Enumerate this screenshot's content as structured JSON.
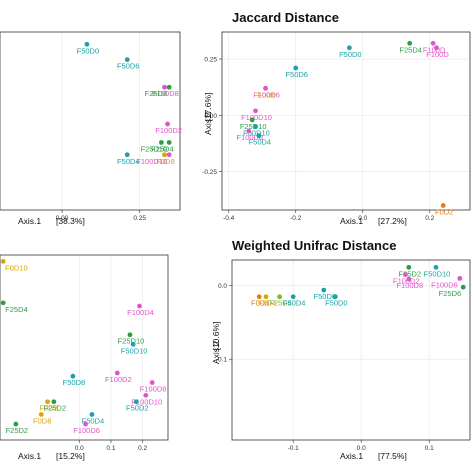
{
  "colors": {
    "F0": "#d6a800",
    "F25": "#2e9e44",
    "F50": "#19a3a8",
    "F100": "#e056c9",
    "F0b": "#e07b1e",
    "F25b": "#7bb82a"
  },
  "chart_data": [
    {
      "type": "scatter",
      "title": "",
      "xlabel": "Axis.1",
      "xpct": "[38.3%]",
      "ylabel": "",
      "ypct": "",
      "xticks": [
        "0.00",
        "0.25"
      ],
      "xtick_values": [
        0.0,
        0.25
      ],
      "yticks": [],
      "ytick_values": [],
      "xlim": [
        -0.2,
        0.38
      ],
      "ylim": [
        -0.3,
        0.28
      ],
      "points": [
        {
          "label": "F50D0",
          "x": 0.08,
          "y": 0.24,
          "group": "F50"
        },
        {
          "label": "F50D6",
          "x": 0.21,
          "y": 0.19,
          "group": "F50"
        },
        {
          "label": "F100D8",
          "x": 0.33,
          "y": 0.1,
          "group": "F100"
        },
        {
          "label": "F25D8",
          "x": 0.345,
          "y": 0.1,
          "group": "F25"
        },
        {
          "label": "F100D2",
          "x": 0.34,
          "y": -0.02,
          "group": "F100"
        },
        {
          "label": "F25D4",
          "x": 0.32,
          "y": -0.08,
          "group": "F25"
        },
        {
          "label": "F50D4",
          "x": 0.21,
          "y": -0.12,
          "group": "F50"
        },
        {
          "label": "F0D8",
          "x": 0.33,
          "y": -0.12,
          "group": "F0"
        },
        {
          "label": "F100D10",
          "x": 0.345,
          "y": -0.12,
          "group": "F100"
        },
        {
          "label": "F25D10",
          "x": 0.345,
          "y": -0.08,
          "group": "F25"
        }
      ]
    },
    {
      "type": "scatter",
      "title": "Jaccard Distance",
      "xlabel": "Axis.1",
      "xpct": "[27.2%]",
      "ylabel": "Axis.2",
      "ypct": "[17.6%]",
      "xticks": [
        "-0.4",
        "-0.2",
        "0.0",
        "0.2"
      ],
      "xtick_values": [
        -0.4,
        -0.2,
        0.0,
        0.2
      ],
      "yticks": [
        "0.25",
        "0.00",
        "-0.25"
      ],
      "ytick_values": [
        0.25,
        0.0,
        -0.25
      ],
      "xlim": [
        -0.42,
        0.32
      ],
      "ylim": [
        -0.42,
        0.37
      ],
      "points": [
        {
          "label": "F25D4",
          "x": 0.14,
          "y": 0.32,
          "group": "F25"
        },
        {
          "label": "F100D",
          "x": 0.21,
          "y": 0.32,
          "group": "F100"
        },
        {
          "label": "F100D",
          "x": 0.22,
          "y": 0.3,
          "group": "F100"
        },
        {
          "label": "F50D0",
          "x": -0.04,
          "y": 0.3,
          "group": "F50"
        },
        {
          "label": "F50D6",
          "x": -0.2,
          "y": 0.21,
          "group": "F50"
        },
        {
          "label": "F0D8",
          "x": -0.29,
          "y": 0.12,
          "group": "F0"
        },
        {
          "label": "F100D6",
          "x": -0.29,
          "y": 0.12,
          "group": "F100"
        },
        {
          "label": "F100D10",
          "x": -0.32,
          "y": 0.02,
          "group": "F100"
        },
        {
          "label": "F25D10",
          "x": -0.33,
          "y": -0.02,
          "group": "F25"
        },
        {
          "label": "F50D10",
          "x": -0.32,
          "y": -0.05,
          "group": "F50"
        },
        {
          "label": "F100D8",
          "x": -0.34,
          "y": -0.07,
          "group": "F100"
        },
        {
          "label": "F50D4",
          "x": -0.31,
          "y": -0.09,
          "group": "F50"
        },
        {
          "label": "F0D2",
          "x": 0.24,
          "y": -0.4,
          "group": "F0b"
        }
      ]
    },
    {
      "type": "scatter",
      "title": "",
      "xlabel": "Axis.1",
      "xpct": "[15.2%]",
      "ylabel": "",
      "ypct": "",
      "xticks": [
        "0.0",
        "0.1",
        "0.2"
      ],
      "xtick_values": [
        0.0,
        0.1,
        0.2
      ],
      "yticks": [],
      "ytick_values": [],
      "xlim": [
        -0.25,
        0.28
      ],
      "ylim": [
        -0.36,
        0.22
      ],
      "points": [
        {
          "label": "F0D10",
          "x": -0.24,
          "y": 0.2,
          "group": "F0"
        },
        {
          "label": "F25D4",
          "x": -0.24,
          "y": 0.07,
          "group": "F25"
        },
        {
          "label": "F100D4",
          "x": 0.19,
          "y": 0.06,
          "group": "F100"
        },
        {
          "label": "F25D10",
          "x": 0.16,
          "y": -0.03,
          "group": "F25"
        },
        {
          "label": "F50D10",
          "x": 0.17,
          "y": -0.06,
          "group": "F50"
        },
        {
          "label": "F50D8",
          "x": -0.02,
          "y": -0.16,
          "group": "F50"
        },
        {
          "label": "F100D2",
          "x": 0.12,
          "y": -0.15,
          "group": "F100"
        },
        {
          "label": "F100D8",
          "x": 0.23,
          "y": -0.18,
          "group": "F100"
        },
        {
          "label": "F100D10",
          "x": 0.21,
          "y": -0.22,
          "group": "F100"
        },
        {
          "label": "F50D2",
          "x": 0.18,
          "y": -0.24,
          "group": "F50"
        },
        {
          "label": "F0D2",
          "x": -0.1,
          "y": -0.24,
          "group": "F0"
        },
        {
          "label": "F25D2",
          "x": -0.08,
          "y": -0.24,
          "group": "F25"
        },
        {
          "label": "F50D4",
          "x": 0.04,
          "y": -0.28,
          "group": "F50"
        },
        {
          "label": "F0D8",
          "x": -0.12,
          "y": -0.28,
          "group": "F0"
        },
        {
          "label": "F25D2",
          "x": -0.2,
          "y": -0.31,
          "group": "F25"
        },
        {
          "label": "F100D6",
          "x": 0.02,
          "y": -0.31,
          "group": "F100"
        }
      ]
    },
    {
      "type": "scatter",
      "title": "Weighted Unifrac Distance",
      "xlabel": "Axis.1",
      "xpct": "[77.5%]",
      "ylabel": "Axis.2",
      "ypct": "[10.6%]",
      "xticks": [
        "-0.1",
        "0.0",
        "0.1"
      ],
      "xtick_values": [
        -0.1,
        0.0,
        0.1
      ],
      "yticks": [
        "0.0",
        "-0.1"
      ],
      "ytick_values": [
        0.0,
        -0.1
      ],
      "xlim": [
        -0.19,
        0.16
      ],
      "ylim": [
        -0.21,
        0.035
      ],
      "points": [
        {
          "label": "F25D2",
          "x": 0.07,
          "y": 0.025,
          "group": "F25"
        },
        {
          "label": "F50D10",
          "x": 0.11,
          "y": 0.025,
          "group": "F50"
        },
        {
          "label": "F100D2",
          "x": 0.065,
          "y": 0.015,
          "group": "F100"
        },
        {
          "label": "F100D8",
          "x": 0.07,
          "y": 0.009,
          "group": "F100"
        },
        {
          "label": "F100D6",
          "x": 0.145,
          "y": 0.01,
          "group": "F100"
        },
        {
          "label": "F25D6",
          "x": 0.15,
          "y": -0.002,
          "group": "F25"
        },
        {
          "label": "F50D6",
          "x": -0.055,
          "y": -0.006,
          "group": "F50"
        },
        {
          "label": "F50D0",
          "x": -0.038,
          "y": -0.015,
          "group": "F50"
        },
        {
          "label": "F0D8",
          "x": -0.15,
          "y": -0.015,
          "group": "F0b"
        },
        {
          "label": "F0D4",
          "x": -0.14,
          "y": -0.015,
          "group": "F0"
        },
        {
          "label": "F25D4",
          "x": -0.12,
          "y": -0.015,
          "group": "F25b"
        },
        {
          "label": "F50D4",
          "x": -0.1,
          "y": -0.015,
          "group": "F50"
        }
      ]
    }
  ]
}
